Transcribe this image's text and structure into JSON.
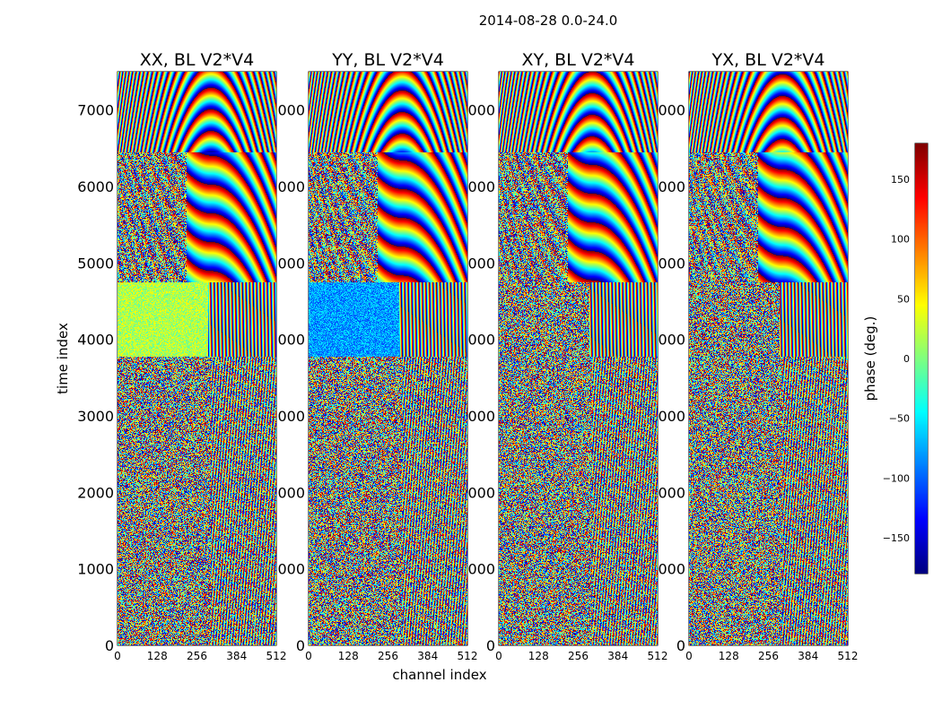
{
  "figure": {
    "suptitle": "2014-08-28 0.0-24.0"
  },
  "chart_data": {
    "type": "heatmap",
    "xlabel": "channel index",
    "ylabel": "time index",
    "xlim": [
      0,
      512
    ],
    "ylim": [
      0,
      7500
    ],
    "xticks": [
      0,
      128,
      256,
      384,
      512
    ],
    "yticks": [
      0,
      1000,
      2000,
      3000,
      4000,
      5000,
      6000,
      7000
    ],
    "panels": [
      {
        "title": "XX, BL V2*V4"
      },
      {
        "title": "YY, BL V2*V4"
      },
      {
        "title": "XY, BL V2*V4"
      },
      {
        "title": "YX, BL V2*V4"
      }
    ],
    "colorbar": {
      "label": "phase (deg.)",
      "range": [
        -180,
        180
      ],
      "ticks": [
        -150,
        -100,
        -50,
        0,
        50,
        100,
        150
      ],
      "tick_labels": [
        "−150",
        "−100",
        "−50",
        "0",
        "50",
        "100",
        "150"
      ],
      "colormap": "jet"
    }
  }
}
